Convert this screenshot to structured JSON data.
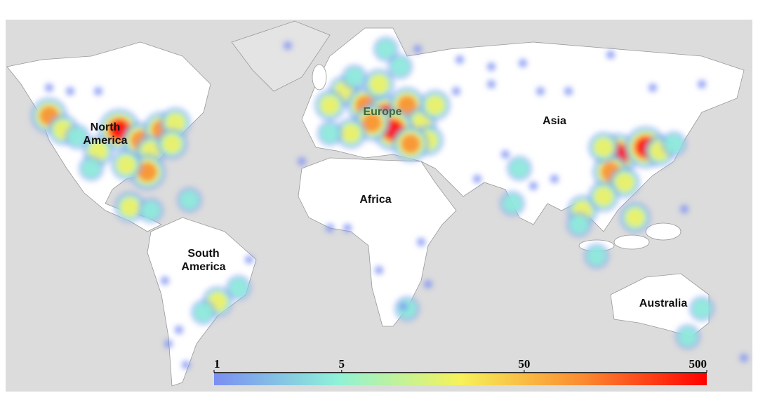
{
  "map": {
    "labels": [
      "North America",
      "Europe",
      "Asia",
      "Africa",
      "South America",
      "Australia"
    ]
  },
  "colorbar": {
    "scale": "log",
    "lim": [
      1,
      500
    ],
    "ticks": [
      1,
      5,
      50,
      500
    ],
    "colors": [
      "#7b8ef2",
      "#8ef2d8",
      "#f6f25a",
      "#fb8a30",
      "#ff0000"
    ]
  }
}
